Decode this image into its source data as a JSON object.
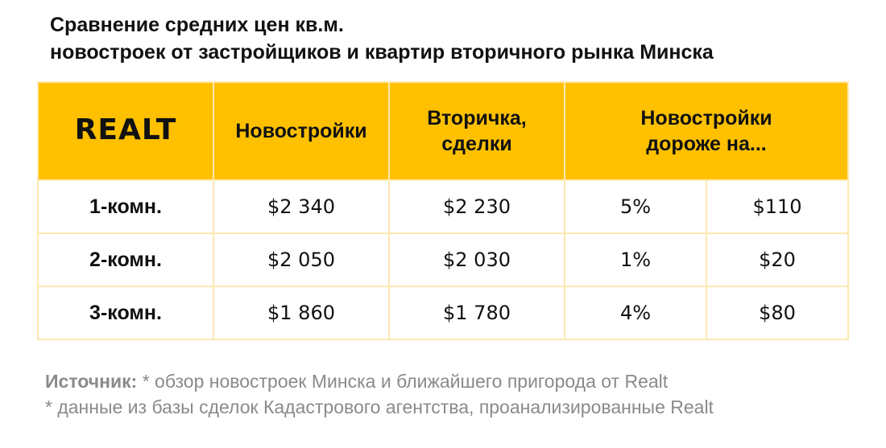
{
  "title": {
    "line1": "Сравнение средних цен кв.м.",
    "line2": "новостроек от застройщиков и квартир вторичного рынка Минска"
  },
  "logo_text": "REALT",
  "chart_data": {
    "type": "table",
    "columns": [
      "Новостройки",
      "Вторичка, сделки",
      "Новостройки дороже на..."
    ],
    "rows": [
      {
        "label": "1-комн.",
        "new_buildings": "$2 340",
        "secondary": "$2 230",
        "diff_percent": "5%",
        "diff_usd": "$110"
      },
      {
        "label": "2-комн.",
        "new_buildings": "$2 050",
        "secondary": "$2 030",
        "diff_percent": "1%",
        "diff_usd": "$20"
      },
      {
        "label": "3-комн.",
        "new_buildings": "$1 860",
        "secondary": "$1 780",
        "diff_percent": "4%",
        "diff_usd": "$80"
      }
    ]
  },
  "source": {
    "label": "Источник:",
    "line1_text": " * обзор новостроек Минска и ближайшего пригорода от Realt",
    "line2": "* данные из базы сделок Кадастрового агентства, проанализированные Realt"
  },
  "colors": {
    "header_bg": "#ffc000",
    "border": "#fde9b0",
    "source_text": "#8a8a8a"
  }
}
